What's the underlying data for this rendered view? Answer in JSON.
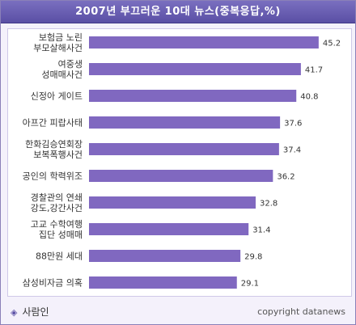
{
  "title": "2007년 부끄러운 10대 뉴스(중복응답,%)",
  "footer": {
    "source_label": "사람인",
    "copyright": "copyright datanews"
  },
  "colors": {
    "bar": "#8068c0",
    "title_bg": "#5a4fa5",
    "panel_bg": "#f4f1fb"
  },
  "chart_data": {
    "type": "bar",
    "orientation": "horizontal",
    "title": "2007년 부끄러운 10대 뉴스(중복응답,%)",
    "categories": [
      [
        "보험금 노린",
        "부모살해사건"
      ],
      [
        "여중생",
        "성매매사건"
      ],
      [
        "신정아 게이트"
      ],
      [
        "아프간 피랍사태"
      ],
      [
        "한화김승연회장",
        "보복폭행사건"
      ],
      [
        "공인의 학력위조"
      ],
      [
        "경찰관의 연쇄",
        "강도,강간사건"
      ],
      [
        "고교 수학여행",
        "집단 성매매"
      ],
      [
        "88만원 세대"
      ],
      [
        "삼성비자금 의혹"
      ]
    ],
    "values": [
      45.2,
      41.7,
      40.8,
      37.6,
      37.4,
      36.2,
      32.8,
      31.4,
      29.8,
      29.1
    ],
    "xlim": [
      0,
      50
    ],
    "grid": false,
    "data_labels": true
  }
}
